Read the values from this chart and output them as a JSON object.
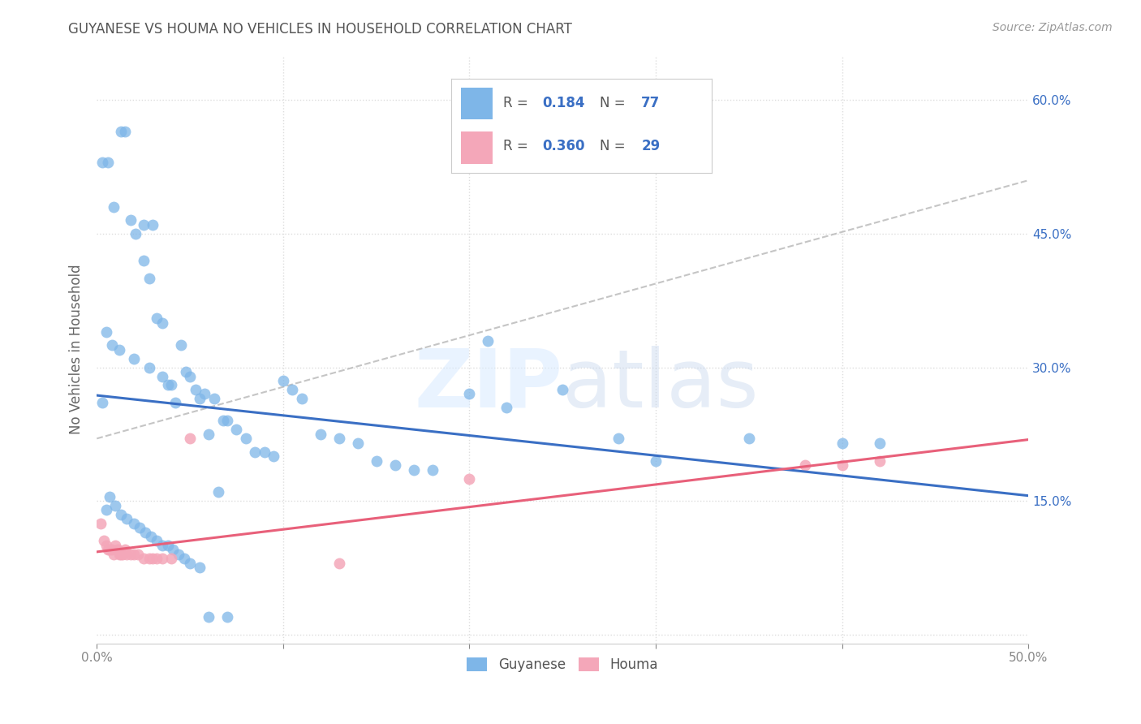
{
  "title": "GUYANESE VS HOUMA NO VEHICLES IN HOUSEHOLD CORRELATION CHART",
  "source": "Source: ZipAtlas.com",
  "ylabel": "No Vehicles in Household",
  "xlim": [
    0.0,
    0.5
  ],
  "ylim": [
    -0.01,
    0.65
  ],
  "watermark_zip": "ZIP",
  "watermark_atlas": "atlas",
  "guyanese_color": "#7EB6E8",
  "houma_color": "#F4A7B9",
  "guyanese_line_color": "#3A6FC4",
  "houma_line_color": "#E8607A",
  "dashed_line_color": "#BBBBBB",
  "R_guyanese": 0.184,
  "N_guyanese": 77,
  "R_houma": 0.36,
  "N_houma": 29,
  "background_color": "#FFFFFF",
  "grid_color": "#DDDDDD",
  "title_color": "#555555",
  "source_color": "#999999",
  "right_tick_color": "#3A6FC4",
  "guyanese_x": [
    0.003,
    0.006,
    0.009,
    0.013,
    0.015,
    0.018,
    0.021,
    0.025,
    0.025,
    0.028,
    0.03,
    0.032,
    0.035,
    0.038,
    0.04,
    0.042,
    0.045,
    0.048,
    0.05,
    0.053,
    0.055,
    0.058,
    0.06,
    0.063,
    0.068,
    0.07,
    0.075,
    0.08,
    0.085,
    0.09,
    0.095,
    0.1,
    0.105,
    0.11,
    0.12,
    0.13,
    0.14,
    0.15,
    0.16,
    0.17,
    0.18,
    0.2,
    0.21,
    0.22,
    0.25,
    0.28,
    0.3,
    0.35,
    0.4,
    0.42,
    0.003,
    0.005,
    0.007,
    0.01,
    0.013,
    0.016,
    0.02,
    0.023,
    0.026,
    0.029,
    0.032,
    0.035,
    0.038,
    0.041,
    0.044,
    0.047,
    0.05,
    0.055,
    0.06,
    0.065,
    0.07,
    0.005,
    0.008,
    0.012,
    0.02,
    0.028,
    0.035
  ],
  "guyanese_y": [
    0.53,
    0.53,
    0.48,
    0.565,
    0.565,
    0.465,
    0.45,
    0.46,
    0.42,
    0.4,
    0.46,
    0.355,
    0.35,
    0.28,
    0.28,
    0.26,
    0.325,
    0.295,
    0.29,
    0.275,
    0.265,
    0.27,
    0.225,
    0.265,
    0.24,
    0.24,
    0.23,
    0.22,
    0.205,
    0.205,
    0.2,
    0.285,
    0.275,
    0.265,
    0.225,
    0.22,
    0.215,
    0.195,
    0.19,
    0.185,
    0.185,
    0.27,
    0.33,
    0.255,
    0.275,
    0.22,
    0.195,
    0.22,
    0.215,
    0.215,
    0.26,
    0.14,
    0.155,
    0.145,
    0.135,
    0.13,
    0.125,
    0.12,
    0.115,
    0.11,
    0.105,
    0.1,
    0.1,
    0.095,
    0.09,
    0.085,
    0.08,
    0.075,
    0.02,
    0.16,
    0.02,
    0.34,
    0.325,
    0.32,
    0.31,
    0.3,
    0.29
  ],
  "houma_x": [
    0.002,
    0.004,
    0.005,
    0.006,
    0.007,
    0.008,
    0.009,
    0.01,
    0.011,
    0.012,
    0.013,
    0.014,
    0.015,
    0.016,
    0.018,
    0.02,
    0.022,
    0.025,
    0.028,
    0.03,
    0.032,
    0.035,
    0.04,
    0.13,
    0.2,
    0.38,
    0.4,
    0.42,
    0.05
  ],
  "houma_y": [
    0.125,
    0.105,
    0.1,
    0.095,
    0.095,
    0.095,
    0.09,
    0.1,
    0.095,
    0.09,
    0.09,
    0.09,
    0.095,
    0.09,
    0.09,
    0.09,
    0.09,
    0.085,
    0.085,
    0.085,
    0.085,
    0.085,
    0.085,
    0.08,
    0.175,
    0.19,
    0.19,
    0.195,
    0.22
  ]
}
